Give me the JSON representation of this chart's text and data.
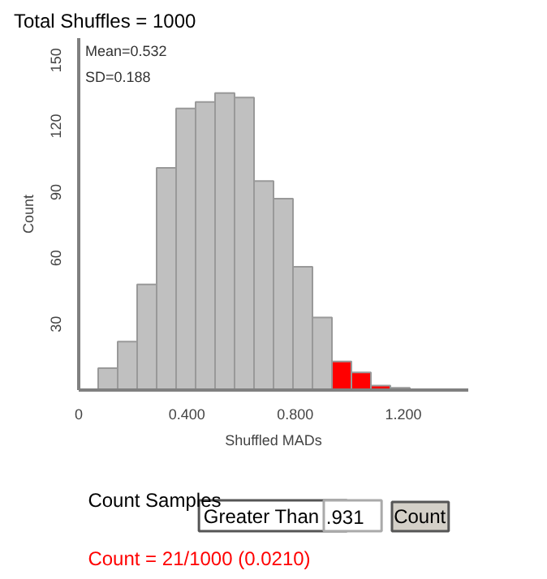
{
  "chart_data": {
    "type": "histogram",
    "title": "Total Shuffles = 1000",
    "xlabel": "Shuffled MADs",
    "ylabel": "Count",
    "bins": [
      0.072,
      0.144,
      0.216,
      0.288,
      0.36,
      0.432,
      0.504,
      0.576,
      0.648,
      0.72,
      0.792,
      0.864,
      0.936,
      1.008,
      1.08,
      1.152,
      1.224
    ],
    "values": [
      10,
      22,
      48,
      101,
      128,
      131,
      135,
      133,
      95,
      87,
      56,
      33,
      13,
      8,
      2,
      1
    ],
    "colors": [
      "#c0c0c0",
      "#c0c0c0",
      "#c0c0c0",
      "#c0c0c0",
      "#c0c0c0",
      "#c0c0c0",
      "#c0c0c0",
      "#c0c0c0",
      "#c0c0c0",
      "#c0c0c0",
      "#c0c0c0",
      "#c0c0c0",
      "#ff0000",
      "#ff0000",
      "#ff0000",
      "#ff0000"
    ],
    "xlim": [
      0,
      1.44
    ],
    "ylim": [
      0,
      160
    ],
    "xticks": [
      0,
      {
        "value": 0.4,
        "label": "0.400"
      },
      {
        "value": 0.8,
        "label": "0.800"
      },
      {
        "value": 1.2,
        "label": "1.200"
      }
    ],
    "yticks": [
      30,
      60,
      90,
      120,
      150
    ],
    "grid": false,
    "annotations": [
      "Mean=0.532",
      "SD=0.188",
      "Count Samples",
      "Greater Than",
      ".931",
      "Count",
      "Count = 21/1000 (0.0210)"
    ]
  }
}
